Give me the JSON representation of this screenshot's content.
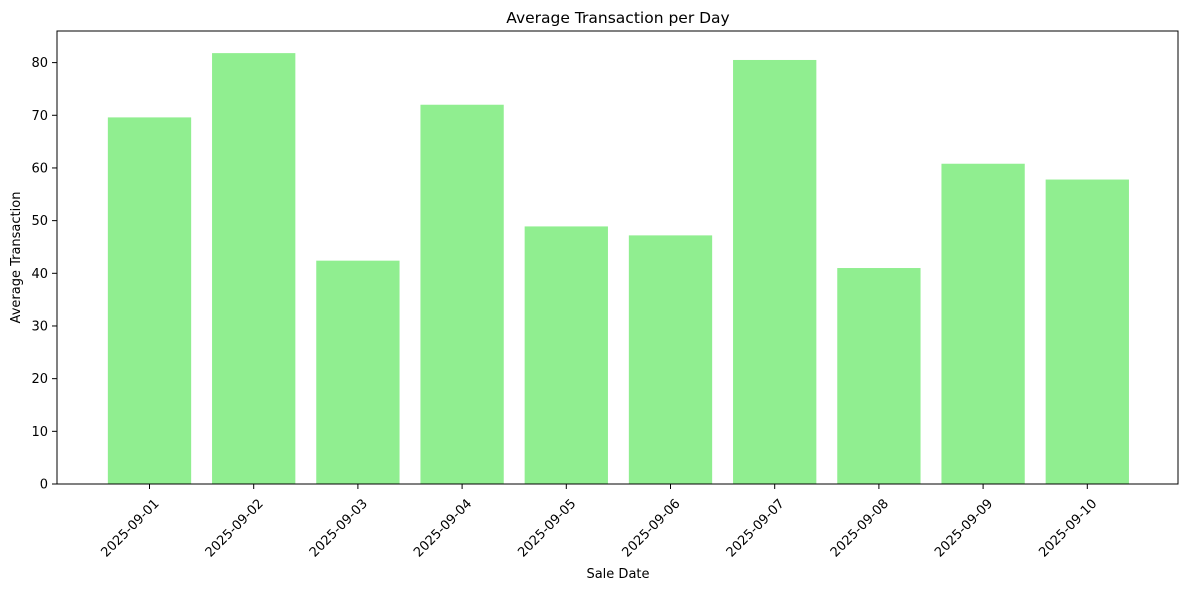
{
  "chart_data": {
    "type": "bar",
    "title": "Average Transaction per Day",
    "xlabel": "Sale Date",
    "ylabel": "Average Transaction",
    "categories": [
      "2025-09-01",
      "2025-09-02",
      "2025-09-03",
      "2025-09-04",
      "2025-09-05",
      "2025-09-06",
      "2025-09-07",
      "2025-09-08",
      "2025-09-09",
      "2025-09-10"
    ],
    "values": [
      69.6,
      81.8,
      42.4,
      72.0,
      48.9,
      47.2,
      80.5,
      41.0,
      60.8,
      57.8
    ],
    "ylim": [
      0,
      86
    ],
    "yticks": [
      0,
      10,
      20,
      30,
      40,
      50,
      60,
      70,
      80
    ],
    "bar_color": "#90ee90",
    "grid": false,
    "legend": "none"
  }
}
